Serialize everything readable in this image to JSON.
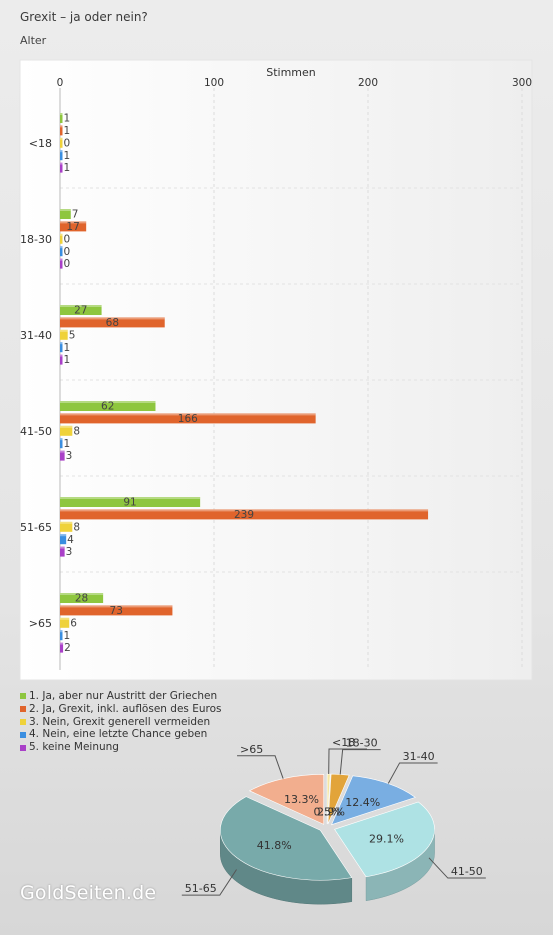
{
  "title": "Grexit – ja oder nein?",
  "subtitle": "Alter",
  "watermark": "GoldSeiten.de",
  "chart_data": [
    {
      "type": "bar",
      "orientation": "horizontal",
      "xlabel": "Stimmen",
      "xlim": [
        0,
        300
      ],
      "xticks": [
        0,
        100,
        200,
        300
      ],
      "categories": [
        "<18",
        "18-30",
        "31-40",
        "41-50",
        "51-65",
        ">65"
      ],
      "series": [
        {
          "name": "1. Ja, aber nur Austritt der Griechen",
          "color": "#8ec63f",
          "values": [
            1,
            7,
            27,
            62,
            91,
            28
          ]
        },
        {
          "name": "2. Ja, Grexit, inkl. auflösen des Euros",
          "color": "#e0642c",
          "values": [
            1,
            17,
            68,
            166,
            239,
            73
          ]
        },
        {
          "name": "3. Nein, Grexit generell vermeiden",
          "color": "#efd23a",
          "values": [
            0,
            0,
            5,
            8,
            8,
            6
          ]
        },
        {
          "name": "4. Nein, eine letzte Chance geben",
          "color": "#3a8ee0",
          "values": [
            1,
            0,
            1,
            1,
            4,
            1
          ]
        },
        {
          "name": "5. keine Meinung",
          "color": "#a940c8",
          "values": [
            1,
            0,
            1,
            3,
            3,
            2
          ]
        }
      ],
      "grid": true,
      "legend": "bottom-left"
    },
    {
      "type": "pie",
      "slices": [
        {
          "label": "<18",
          "percent": 0.5,
          "percent_label": "0.5%",
          "color": "#f5e6a0"
        },
        {
          "label": "18-30",
          "percent": 2.9,
          "percent_label": "2.9%",
          "color": "#e2a43a"
        },
        {
          "label": "31-40",
          "percent": 12.4,
          "percent_label": "12.4%",
          "color": "#79aee2"
        },
        {
          "label": "41-50",
          "percent": 29.1,
          "percent_label": "29.1%",
          "color": "#aee2e4"
        },
        {
          "label": "51-65",
          "percent": 41.8,
          "percent_label": "41.8%",
          "color": "#78aaaa"
        },
        {
          "label": ">65",
          "percent": 13.3,
          "percent_label": "13.3%",
          "color": "#f2ae8e"
        }
      ]
    }
  ]
}
